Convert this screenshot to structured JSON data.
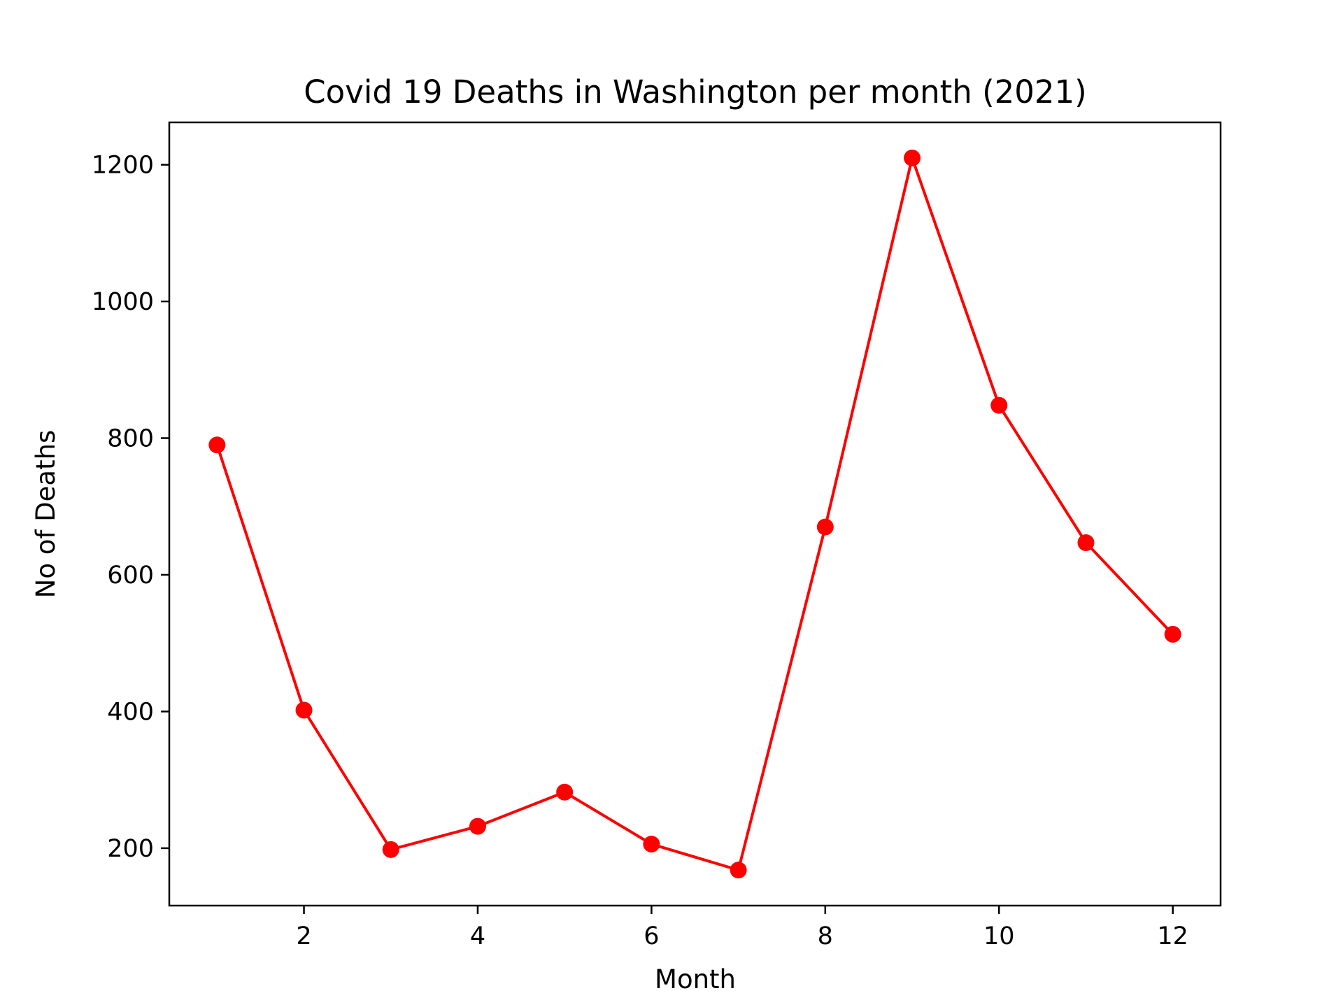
{
  "chart_data": {
    "type": "line",
    "title": "Covid 19 Deaths in Washington per month (2021)",
    "xlabel": "Month",
    "ylabel": "No of Deaths",
    "x": [
      1,
      2,
      3,
      4,
      5,
      6,
      7,
      8,
      9,
      10,
      11,
      12
    ],
    "series": [
      {
        "values": [
          790,
          402,
          198,
          232,
          282,
          206,
          168,
          670,
          1210,
          848,
          647,
          513
        ],
        "color": "#ff0000",
        "marker": "circle"
      }
    ],
    "xlim": [
      0.45,
      12.55
    ],
    "ylim": [
      116,
      1262
    ],
    "xticks": [
      2,
      4,
      6,
      8,
      10,
      12
    ],
    "yticks": [
      200,
      400,
      600,
      800,
      1000,
      1200
    ],
    "grid": false,
    "legend": "none"
  }
}
